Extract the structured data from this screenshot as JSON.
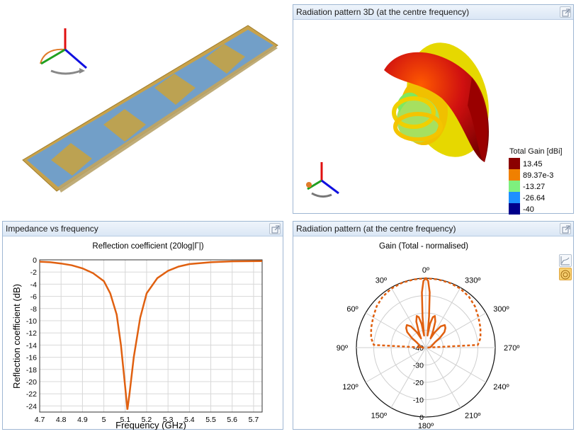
{
  "model_view": {
    "axes_icon": "xyz-axes-icon"
  },
  "radiation3d": {
    "title": "Radiation pattern 3D (at the centre frequency)",
    "legend": {
      "title": "Total Gain [dBi]",
      "entries": [
        {
          "label": "13.45",
          "color": "#8b0000"
        },
        {
          "label": "89.37e-3",
          "color": "#f08000"
        },
        {
          "label": "-13.27",
          "color": "#7ef07e"
        },
        {
          "label": "-26.64",
          "color": "#1e90ff"
        },
        {
          "label": "-40",
          "color": "#00008b"
        }
      ]
    }
  },
  "impedance": {
    "title": "Impedance vs frequency",
    "chart_title": "Reflection coefficient (20log|Γ|)",
    "xlabel": "Frequency (GHz)",
    "ylabel": "Reflection coefficient (dB)",
    "x_ticks": [
      "4.7",
      "4.8",
      "4.9",
      "5",
      "5.1",
      "5.2",
      "5.3",
      "5.4",
      "5.5",
      "5.6",
      "5.7"
    ],
    "y_ticks": [
      "0",
      "-2",
      "-4",
      "-6",
      "-8",
      "-10",
      "-12",
      "-14",
      "-16",
      "-18",
      "-20",
      "-22",
      "-24"
    ]
  },
  "pattern": {
    "title": "Radiation pattern (at the centre frequency)",
    "chart_title": "Gain (Total - normalised)",
    "angle_labels": [
      "0º",
      "30º",
      "60º",
      "90º",
      "120º",
      "150º",
      "180º",
      "210º",
      "240º",
      "270º",
      "300º",
      "330º"
    ],
    "radial_labels": [
      "0",
      "-10",
      "-20",
      "-30",
      "-40"
    ]
  },
  "chart_data": [
    {
      "type": "line",
      "title": "Reflection coefficient (20log|Γ|)",
      "xlabel": "Frequency (GHz)",
      "ylabel": "Reflection coefficient (dB)",
      "xlim": [
        4.7,
        5.74
      ],
      "ylim": [
        -25,
        0
      ],
      "grid": true,
      "color": "#e06010",
      "x": [
        4.7,
        4.75,
        4.8,
        4.85,
        4.9,
        4.95,
        5.0,
        5.03,
        5.06,
        5.08,
        5.1,
        5.11,
        5.12,
        5.14,
        5.17,
        5.2,
        5.25,
        5.3,
        5.35,
        5.4,
        5.5,
        5.6,
        5.74
      ],
      "y": [
        -0.3,
        -0.4,
        -0.6,
        -0.9,
        -1.4,
        -2.2,
        -3.5,
        -5.5,
        -9.0,
        -14.0,
        -21.0,
        -24.6,
        -22.0,
        -16.0,
        -9.5,
        -5.5,
        -3.0,
        -1.8,
        -1.1,
        -0.7,
        -0.4,
        -0.25,
        -0.2
      ]
    },
    {
      "type": "line",
      "subtype": "polar",
      "title": "Gain (Total - normalised)",
      "rlim": [
        -40,
        0
      ],
      "grid": true,
      "series": [
        {
          "style": "solid",
          "color": "#e06010",
          "theta": [
            -90,
            -80,
            -70,
            -60,
            -55,
            -50,
            -45,
            -40,
            -35,
            -30,
            -27,
            -24,
            -20,
            -16,
            -13,
            -10,
            -8,
            -6,
            -4,
            -2,
            0,
            2,
            4,
            6,
            8,
            10,
            13,
            16,
            20,
            24,
            27,
            30,
            35,
            40,
            45,
            50,
            55,
            60,
            70,
            80,
            90
          ],
          "r": [
            -38,
            -37,
            -36,
            -34,
            -30,
            -26,
            -24,
            -23,
            -25,
            -30,
            -34,
            -30,
            -24,
            -21,
            -22,
            -26,
            -33,
            -22,
            -8,
            -1.5,
            0,
            -1.5,
            -8,
            -22,
            -33,
            -26,
            -22,
            -21,
            -24,
            -30,
            -34,
            -30,
            -25,
            -23,
            -24,
            -26,
            -30,
            -34,
            -36,
            -37,
            -38
          ]
        },
        {
          "style": "dashed",
          "color": "#e06010",
          "theta": [
            -90,
            -87,
            -80,
            -70,
            -60,
            -50,
            -40,
            -30,
            -20,
            -10,
            0,
            10,
            20,
            30,
            40,
            50,
            60,
            70,
            80,
            87,
            90
          ],
          "r": [
            -39,
            -10,
            -8,
            -6.5,
            -5,
            -3,
            -1.5,
            -0.6,
            -0.2,
            -0.1,
            0,
            -0.1,
            -0.2,
            -0.6,
            -1.5,
            -3,
            -5,
            -6.5,
            -8,
            -10,
            -39
          ]
        }
      ]
    }
  ]
}
